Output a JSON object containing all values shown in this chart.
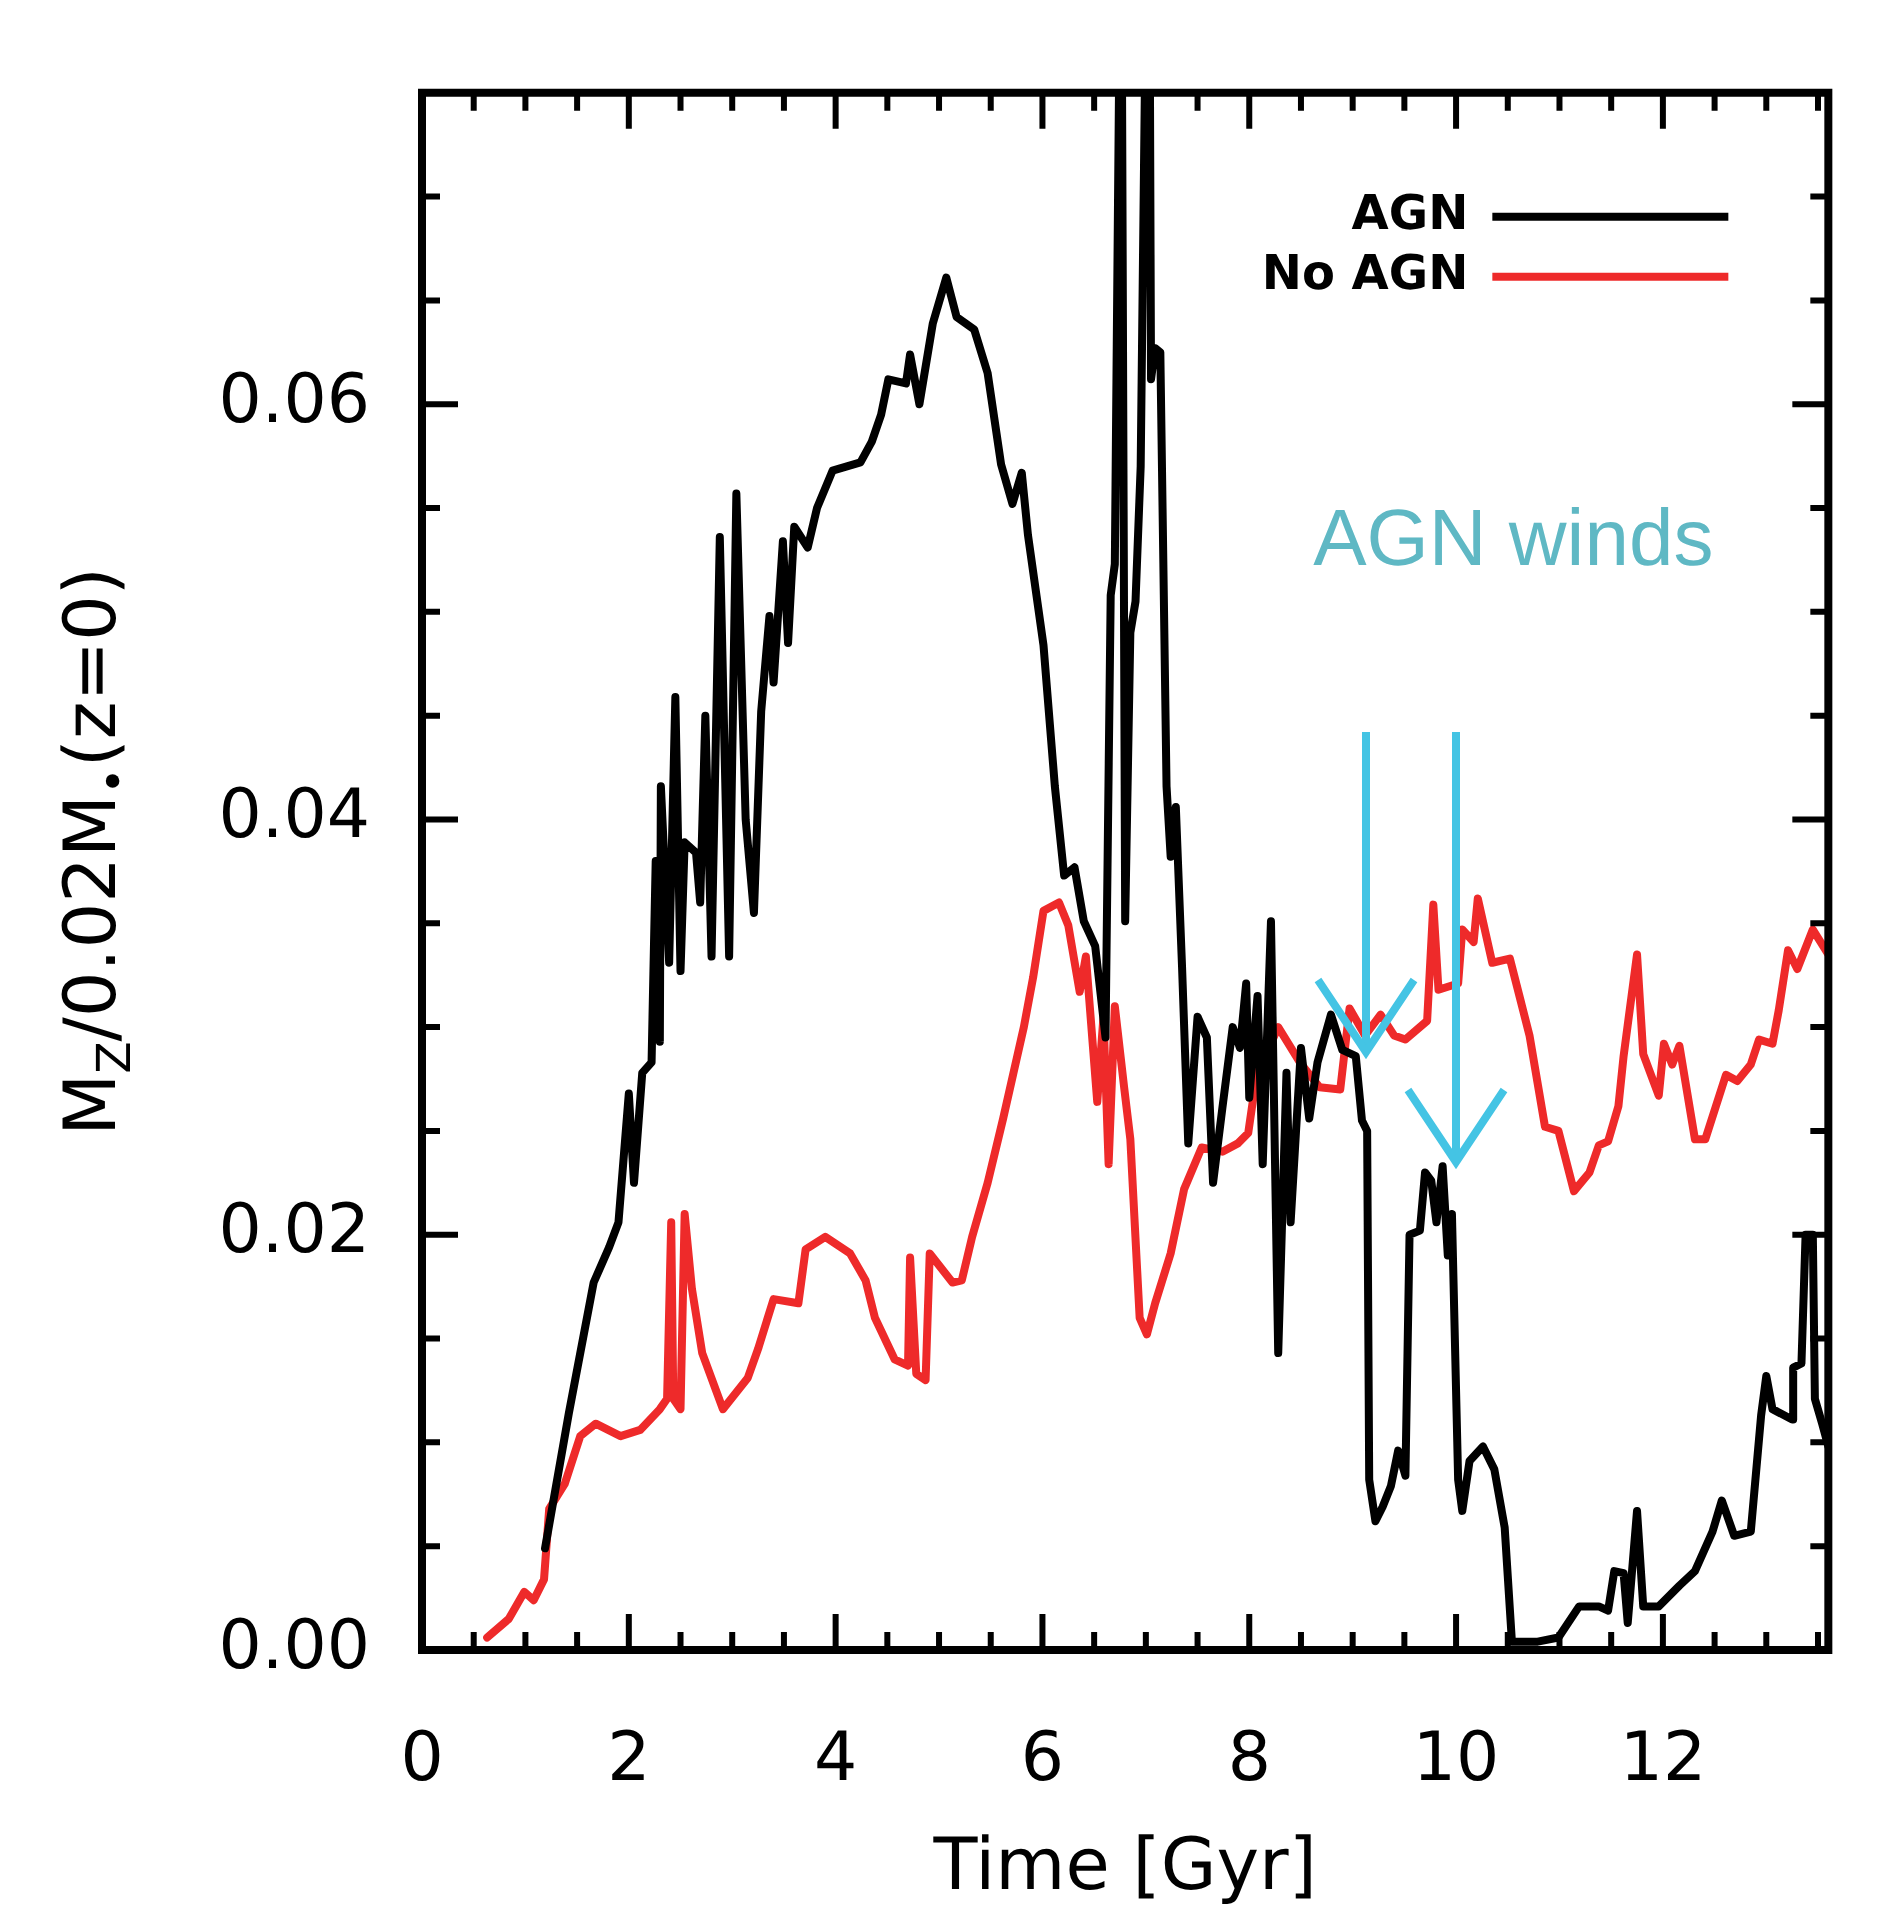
{
  "chart_data": {
    "type": "line",
    "xlabel": "Time [Gyr]",
    "ylabel": "M$_{Z}$/0.02M$_{•}$(z=0)",
    "xlim": [
      0,
      13.6
    ],
    "ylim": [
      0,
      0.075
    ],
    "xticks": [
      0,
      {
        "value": 0.5,
        "label": null
      },
      {
        "value": 1,
        "label": null
      },
      {
        "value": 1.5,
        "label": null
      },
      2,
      {
        "value": 2.5,
        "label": null
      },
      {
        "value": 3,
        "label": null
      },
      {
        "value": 3.5,
        "label": null
      },
      4,
      {
        "value": 4.5,
        "label": null
      },
      {
        "value": 5,
        "label": null
      },
      {
        "value": 5.5,
        "label": null
      },
      6,
      {
        "value": 6.5,
        "label": null
      },
      {
        "value": 7,
        "label": null
      },
      {
        "value": 7.5,
        "label": null
      },
      8,
      {
        "value": 8.5,
        "label": null
      },
      {
        "value": 9,
        "label": null
      },
      {
        "value": 9.5,
        "label": null
      },
      10,
      {
        "value": 10.5,
        "label": null
      },
      {
        "value": 11,
        "label": null
      },
      {
        "value": 11.5,
        "label": null
      },
      12,
      {
        "value": 12.5,
        "label": null
      },
      {
        "value": 13,
        "label": null
      },
      {
        "value": 13.5,
        "label": null
      }
    ],
    "yticks": [
      {
        "value": 0,
        "label": "0.00"
      },
      {
        "value": 0.005,
        "label": null
      },
      {
        "value": 0.01,
        "label": null
      },
      {
        "value": 0.015,
        "label": null
      },
      {
        "value": 0.02,
        "label": "0.02"
      },
      {
        "value": 0.025,
        "label": null
      },
      {
        "value": 0.03,
        "label": null
      },
      {
        "value": 0.035,
        "label": null
      },
      {
        "value": 0.04,
        "label": "0.04"
      },
      {
        "value": 0.045,
        "label": null
      },
      {
        "value": 0.05,
        "label": null
      },
      {
        "value": 0.055,
        "label": null
      },
      {
        "value": 0.06,
        "label": "0.06"
      },
      {
        "value": 0.065,
        "label": null
      },
      {
        "value": 0.07,
        "label": null
      },
      {
        "value": 0.075,
        "label": null
      }
    ],
    "grid": false,
    "legend": "top right",
    "marker": "none",
    "line_style": "solid",
    "annotations": [
      "AGN winds"
    ],
    "series": [
      {
        "name": "AGN",
        "color": "#000000",
        "x": [
          1.19,
          1.42,
          1.66,
          1.81,
          1.9,
          2.0,
          2.05,
          2.13,
          2.22,
          2.26,
          2.3,
          2.31,
          2.39,
          2.45,
          2.5,
          2.54,
          2.65,
          2.69,
          2.74,
          2.8,
          2.88,
          2.97,
          3.04,
          3.13,
          3.21,
          3.28,
          3.36,
          3.4,
          3.49,
          3.54,
          3.6,
          3.73,
          3.82,
          3.97,
          4.24,
          4.35,
          4.44,
          4.51,
          4.68,
          4.72,
          4.81,
          4.94,
          5.07,
          5.17,
          5.34,
          5.47,
          5.6,
          5.71,
          5.8,
          5.86,
          6.01,
          6.12,
          6.21,
          6.31,
          6.4,
          6.51,
          6.61,
          6.66,
          6.7,
          6.74,
          6.76,
          6.77,
          6.8,
          6.85,
          6.9,
          6.95,
          6.99,
          7.02,
          7.04,
          7.05,
          7.09,
          7.14,
          7.2,
          7.24,
          7.29,
          7.35,
          7.41,
          7.5,
          7.59,
          7.65,
          7.74,
          7.84,
          7.91,
          7.97,
          8.0,
          8.08,
          8.13,
          8.21,
          8.28,
          8.36,
          8.4,
          8.5,
          8.58,
          8.66,
          8.79,
          8.9,
          9.03,
          9.09,
          9.14,
          9.16,
          9.22,
          9.29,
          9.37,
          9.44,
          9.51,
          9.55,
          9.65,
          9.7,
          9.76,
          9.81,
          9.87,
          9.92,
          9.96,
          10.02,
          10.06,
          10.13,
          10.26,
          10.37,
          10.47,
          10.54,
          10.79,
          10.99,
          11.19,
          11.38,
          11.47,
          11.53,
          11.62,
          11.66,
          11.75,
          11.81,
          11.96,
          12.16,
          12.31,
          12.48,
          12.57,
          12.69,
          12.85,
          12.95,
          13.0,
          13.06,
          13.25,
          13.26,
          13.34,
          13.38,
          13.45,
          13.47,
          13.54,
          13.6
        ],
        "values": [
          0.0049,
          0.0114,
          0.0177,
          0.0194,
          0.0206,
          0.0268,
          0.0225,
          0.0278,
          0.0283,
          0.038,
          0.0293,
          0.0416,
          0.0331,
          0.0459,
          0.0327,
          0.0389,
          0.0384,
          0.036,
          0.045,
          0.0334,
          0.0536,
          0.0334,
          0.0557,
          0.04,
          0.0355,
          0.0452,
          0.0498,
          0.0466,
          0.0534,
          0.0485,
          0.0541,
          0.0531,
          0.055,
          0.0568,
          0.0572,
          0.0582,
          0.0595,
          0.0612,
          0.061,
          0.0624,
          0.06,
          0.0639,
          0.0661,
          0.0642,
          0.0636,
          0.0615,
          0.0571,
          0.0552,
          0.0567,
          0.0537,
          0.0484,
          0.0416,
          0.0373,
          0.0377,
          0.0351,
          0.0339,
          0.0295,
          0.0508,
          0.0523,
          0.075,
          null,
          0.075,
          0.0351,
          0.049,
          0.0505,
          0.057,
          0.075,
          null,
          0.075,
          0.0612,
          0.0627,
          0.0625,
          0.0416,
          0.0382,
          0.0406,
          0.0329,
          0.0244,
          0.0305,
          0.0295,
          0.0225,
          0.0261,
          0.03,
          0.029,
          0.0321,
          0.0266,
          0.0315,
          0.0234,
          0.0351,
          0.0143,
          0.0278,
          0.0206,
          0.029,
          0.0256,
          0.0283,
          0.0306,
          0.0289,
          0.0286,
          0.0255,
          0.025,
          0.0082,
          0.0062,
          0.0069,
          0.0079,
          0.0096,
          0.0084,
          0.02,
          0.0202,
          0.023,
          0.0226,
          0.0206,
          0.0233,
          0.019,
          0.021,
          0.0082,
          0.0067,
          0.0091,
          0.0098,
          0.0087,
          0.0059,
          0.0004,
          0.0004,
          0.0006,
          0.0021,
          0.0021,
          0.0019,
          0.0038,
          0.0037,
          0.0013,
          0.0067,
          0.0021,
          0.0021,
          0.0031,
          0.0038,
          0.0057,
          0.0072,
          0.0055,
          0.0057,
          0.0113,
          0.0132,
          0.0116,
          0.0111,
          0.0136,
          0.0138,
          0.02,
          0.02,
          0.0121,
          0.0109,
          0.0098
        ]
      },
      {
        "name": "No AGN",
        "color": "#ee2a2a",
        "x": [
          0.63,
          0.84,
          0.99,
          1.08,
          1.18,
          1.23,
          1.38,
          1.53,
          1.68,
          1.92,
          2.11,
          2.3,
          2.37,
          2.41,
          2.43,
          2.5,
          2.54,
          2.61,
          2.71,
          2.91,
          3.15,
          3.25,
          3.4,
          3.64,
          3.71,
          3.9,
          4.14,
          4.29,
          4.38,
          4.57,
          4.7,
          4.72,
          4.78,
          4.87,
          4.91,
          5.02,
          5.13,
          5.22,
          5.32,
          5.47,
          5.62,
          5.82,
          5.91,
          6.01,
          6.16,
          6.25,
          6.36,
          6.42,
          6.53,
          6.59,
          6.64,
          6.7,
          6.79,
          6.85,
          6.94,
          7.01,
          7.09,
          7.24,
          7.37,
          7.54,
          7.74,
          7.89,
          7.99,
          8.08,
          8.19,
          8.28,
          8.49,
          8.68,
          8.88,
          8.97,
          9.12,
          9.27,
          9.4,
          9.51,
          9.72,
          9.78,
          9.83,
          10.02,
          10.06,
          10.17,
          10.21,
          10.35,
          10.52,
          10.71,
          10.86,
          10.99,
          11.14,
          11.29,
          11.38,
          11.47,
          11.57,
          11.62,
          11.75,
          11.81,
          11.96,
          12.01,
          12.09,
          12.16,
          12.31,
          12.41,
          12.61,
          12.72,
          12.85,
          12.93,
          13.06,
          13.12,
          13.21,
          13.3,
          13.45,
          13.6
        ],
        "values": [
          0.0006,
          0.0015,
          0.0028,
          0.0024,
          0.0034,
          0.0068,
          0.008,
          0.0103,
          0.0109,
          0.0103,
          0.0106,
          0.0116,
          0.0121,
          0.0206,
          0.0121,
          0.0116,
          0.021,
          0.0174,
          0.0143,
          0.0116,
          0.0131,
          0.0145,
          0.0169,
          0.0167,
          0.0193,
          0.0199,
          0.0191,
          0.0178,
          0.016,
          0.014,
          0.0137,
          0.0189,
          0.0133,
          0.013,
          0.0191,
          0.0184,
          0.0177,
          0.0178,
          0.0199,
          0.0225,
          0.0256,
          0.03,
          0.0324,
          0.0356,
          0.036,
          0.0349,
          0.0317,
          0.0334,
          0.0264,
          0.0305,
          0.0234,
          0.031,
          0.0271,
          0.0246,
          0.016,
          0.0152,
          0.0167,
          0.0191,
          0.0222,
          0.0242,
          0.024,
          0.0244,
          0.0249,
          0.028,
          0.029,
          0.03,
          0.0283,
          0.0271,
          0.027,
          0.0309,
          0.0296,
          0.0306,
          0.0296,
          0.0294,
          0.0303,
          0.0359,
          0.0318,
          0.0321,
          0.0347,
          0.0341,
          0.0362,
          0.0331,
          0.0333,
          0.0296,
          0.0252,
          0.025,
          0.0221,
          0.023,
          0.0243,
          0.0245,
          0.0262,
          0.0286,
          0.0335,
          0.0287,
          0.0267,
          0.0292,
          0.0282,
          0.0291,
          0.0246,
          0.0246,
          0.0277,
          0.0274,
          0.0282,
          0.0294,
          0.0292,
          0.0308,
          0.0337,
          0.0328,
          0.0347,
          0.0335
        ]
      }
    ]
  }
}
